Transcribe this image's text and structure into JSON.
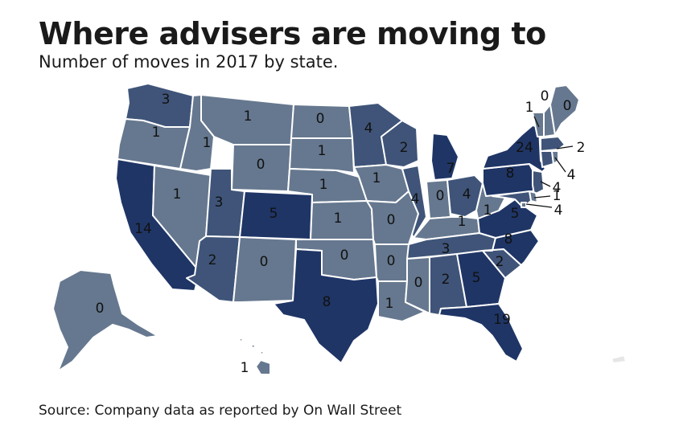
{
  "title": "Where advisers are moving to",
  "subtitle": "Number of moves in 2017 by state.",
  "source": "Source: Company data as reported by On Wall Street",
  "colors": {
    "low": "#66788f",
    "mid": "#3f5478",
    "high": "#1f3566",
    "light": "#8e9aac",
    "border": "#ffffff"
  },
  "states": [
    {
      "code": "WA",
      "value": "3"
    },
    {
      "code": "OR",
      "value": "1"
    },
    {
      "code": "CA",
      "value": "14"
    },
    {
      "code": "ID",
      "value": "1"
    },
    {
      "code": "NV",
      "value": "1"
    },
    {
      "code": "MT",
      "value": "1"
    },
    {
      "code": "WY",
      "value": "0"
    },
    {
      "code": "UT",
      "value": "3"
    },
    {
      "code": "AZ",
      "value": "2"
    },
    {
      "code": "CO",
      "value": "5"
    },
    {
      "code": "NM",
      "value": "0"
    },
    {
      "code": "ND",
      "value": "0"
    },
    {
      "code": "SD",
      "value": "1"
    },
    {
      "code": "NE",
      "value": "1"
    },
    {
      "code": "KS",
      "value": "1"
    },
    {
      "code": "OK",
      "value": "0"
    },
    {
      "code": "TX",
      "value": "8"
    },
    {
      "code": "MN",
      "value": "4"
    },
    {
      "code": "IA",
      "value": "1"
    },
    {
      "code": "MO",
      "value": "0"
    },
    {
      "code": "AR",
      "value": "0"
    },
    {
      "code": "LA",
      "value": "1"
    },
    {
      "code": "WI",
      "value": "2"
    },
    {
      "code": "IL",
      "value": "4"
    },
    {
      "code": "MI",
      "value": "7"
    },
    {
      "code": "IN",
      "value": "0"
    },
    {
      "code": "OH",
      "value": "4"
    },
    {
      "code": "KY",
      "value": "1"
    },
    {
      "code": "TN",
      "value": "3"
    },
    {
      "code": "MS",
      "value": "0"
    },
    {
      "code": "AL",
      "value": "2"
    },
    {
      "code": "GA",
      "value": "5"
    },
    {
      "code": "FL",
      "value": "19"
    },
    {
      "code": "SC",
      "value": "2"
    },
    {
      "code": "NC",
      "value": "8"
    },
    {
      "code": "VA",
      "value": "5"
    },
    {
      "code": "WV",
      "value": "1"
    },
    {
      "code": "PA",
      "value": "8"
    },
    {
      "code": "NY",
      "value": "24"
    },
    {
      "code": "VT",
      "value": "1"
    },
    {
      "code": "NH",
      "value": "0"
    },
    {
      "code": "ME",
      "value": "0"
    },
    {
      "code": "MA",
      "value": "2"
    },
    {
      "code": "CT",
      "value": "4"
    },
    {
      "code": "NJ",
      "value": "4"
    },
    {
      "code": "DE",
      "value": "1"
    },
    {
      "code": "MD",
      "value": "4"
    },
    {
      "code": "AK",
      "value": "0"
    },
    {
      "code": "HI",
      "value": "1"
    }
  ]
}
